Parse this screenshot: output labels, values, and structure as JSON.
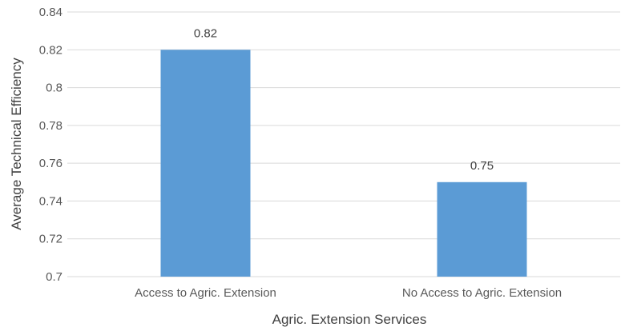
{
  "chart_data": {
    "type": "bar",
    "categories": [
      "Access to Agric. Extension",
      "No Access to Agric. Extension"
    ],
    "values": [
      0.82,
      0.75
    ],
    "data_labels": [
      "0.82",
      "0.75"
    ],
    "title": "",
    "xlabel": "Agric. Extension Services",
    "ylabel": "Average Technical Efficiency",
    "ylim": [
      0.7,
      0.84
    ],
    "yticks": [
      "0.7",
      "0.72",
      "0.74",
      "0.76",
      "0.78",
      "0.8",
      "0.82",
      "0.84"
    ],
    "grid": true,
    "legend": false,
    "bar_color": "#5b9bd5"
  }
}
